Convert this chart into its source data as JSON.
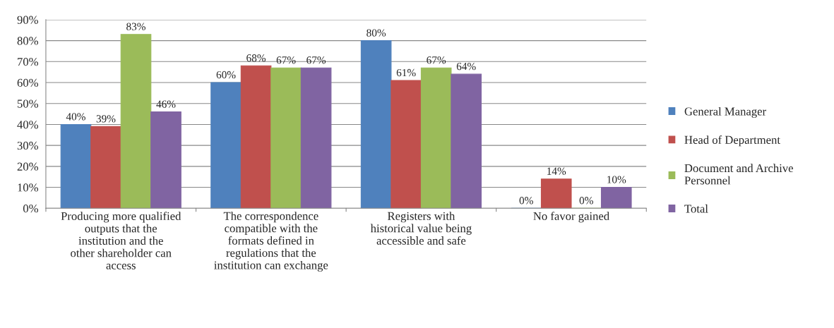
{
  "chart_data": {
    "type": "bar",
    "categories": [
      "Producing more qualified outputs that the institution and the other shareholder can access",
      "The correspondence compatible with the formats defined in regulations that the institution can exchange",
      "Registers with historical value being accessible and safe",
      "No favor gained"
    ],
    "series": [
      {
        "name": "General Manager",
        "color": "#4f81bd",
        "values": [
          40,
          60,
          80,
          0
        ],
        "value_labels": [
          "40%",
          "60%",
          "80%",
          "0%"
        ]
      },
      {
        "name": "Head of Department",
        "color": "#c0504d",
        "values": [
          39,
          68,
          61,
          14
        ],
        "value_labels": [
          "39%",
          "68%",
          "61%",
          "14%"
        ]
      },
      {
        "name": "Document and Archive Personnel",
        "color": "#9bbb59",
        "values": [
          83,
          67,
          67,
          0
        ],
        "value_labels": [
          "83%",
          "67%",
          "67%",
          "0%"
        ]
      },
      {
        "name": "Total",
        "color": "#8064a2",
        "values": [
          46,
          67,
          64,
          10
        ],
        "value_labels": [
          "46%",
          "67%",
          "64%",
          "10%"
        ]
      }
    ],
    "ylim": [
      0,
      90
    ],
    "yticks": [
      {
        "value": 0,
        "label": "0%"
      },
      {
        "value": 10,
        "label": "10%"
      },
      {
        "value": 20,
        "label": "20%"
      },
      {
        "value": 30,
        "label": "30%"
      },
      {
        "value": 40,
        "label": "40%"
      },
      {
        "value": 50,
        "label": "50%"
      },
      {
        "value": 60,
        "label": "60%"
      },
      {
        "value": 70,
        "label": "70%"
      },
      {
        "value": 80,
        "label": "80%"
      },
      {
        "value": 90,
        "label": "90%"
      }
    ],
    "grid": "y",
    "legend": "right"
  }
}
